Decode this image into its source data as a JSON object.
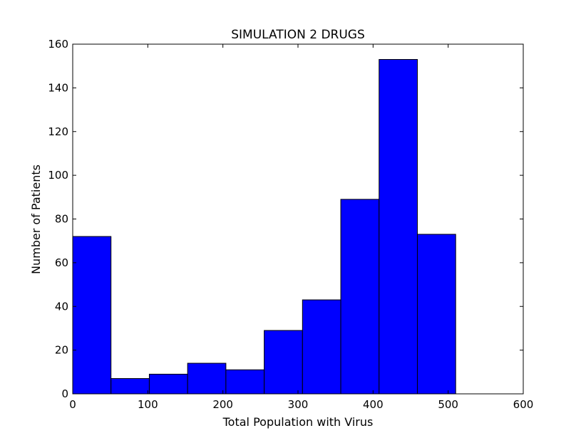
{
  "chart_data": {
    "type": "bar",
    "title": "SIMULATION 2 DRUGS",
    "xlabel": "Total Population with Virus",
    "ylabel": "Number of Patients",
    "xlim": [
      0,
      600
    ],
    "ylim": [
      0,
      160
    ],
    "xticks": [
      0,
      100,
      200,
      300,
      400,
      500,
      600
    ],
    "yticks": [
      0,
      20,
      40,
      60,
      80,
      100,
      120,
      140,
      160
    ],
    "grid": false,
    "legend": "none",
    "bar_color": "#0000ff",
    "edge_color": "#000000",
    "bins": [
      {
        "x0": 0,
        "x1": 51,
        "value": 72
      },
      {
        "x0": 51,
        "x1": 102,
        "value": 7
      },
      {
        "x0": 102,
        "x1": 153,
        "value": 9
      },
      {
        "x0": 153,
        "x1": 204,
        "value": 14
      },
      {
        "x0": 204,
        "x1": 255,
        "value": 11
      },
      {
        "x0": 255,
        "x1": 306,
        "value": 29
      },
      {
        "x0": 306,
        "x1": 357,
        "value": 43
      },
      {
        "x0": 357,
        "x1": 408,
        "value": 89
      },
      {
        "x0": 408,
        "x1": 459,
        "value": 153
      },
      {
        "x0": 459,
        "x1": 510,
        "value": 73
      }
    ]
  }
}
